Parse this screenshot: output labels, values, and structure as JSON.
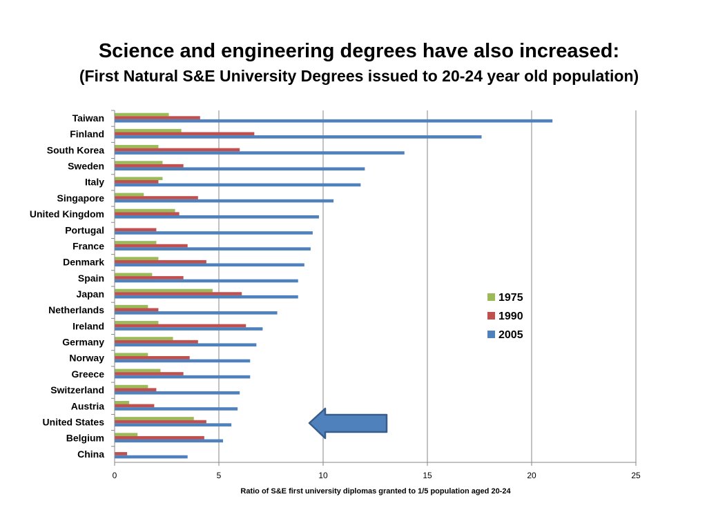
{
  "title": "Science and engineering degrees have also increased:",
  "subtitle": "(First Natural S&E University Degrees issued to 20-24 year old population)",
  "chart_data": {
    "type": "bar",
    "orientation": "horizontal",
    "categories": [
      "Taiwan",
      "Finland",
      "South Korea",
      "Sweden",
      "Italy",
      "Singapore",
      "United Kingdom",
      "Portugal",
      "France",
      "Denmark",
      "Spain",
      "Japan",
      "Netherlands",
      "Ireland",
      "Germany",
      "Norway",
      "Greece",
      "Switzerland",
      "Austria",
      "United States",
      "Belgium",
      "China"
    ],
    "series": [
      {
        "name": "1975",
        "color": "#9BBB59",
        "values": [
          2.6,
          3.2,
          2.1,
          2.3,
          2.3,
          1.4,
          2.9,
          0,
          2.0,
          2.1,
          1.8,
          4.7,
          1.6,
          2.1,
          2.8,
          1.6,
          2.2,
          1.6,
          0.7,
          3.8,
          1.1,
          0
        ]
      },
      {
        "name": "1990",
        "color": "#C0504D",
        "values": [
          4.1,
          6.7,
          6.0,
          3.3,
          2.1,
          4.0,
          3.1,
          2.0,
          3.5,
          4.4,
          3.3,
          6.1,
          2.1,
          6.3,
          4.0,
          3.6,
          3.3,
          2.0,
          1.9,
          4.4,
          4.3,
          0.6
        ]
      },
      {
        "name": "2005",
        "color": "#4F81BD",
        "values": [
          21.0,
          17.6,
          13.9,
          12.0,
          11.8,
          10.5,
          9.8,
          9.5,
          9.4,
          9.1,
          8.8,
          8.8,
          7.8,
          7.1,
          6.8,
          6.5,
          6.5,
          6.0,
          5.9,
          5.6,
          5.2,
          3.5
        ]
      }
    ],
    "xlabel": "Ratio of  S&E first university diplomas granted to 1/5 population aged 20-24",
    "xticks": [
      0,
      5,
      10,
      15,
      20,
      25
    ],
    "xlim": [
      0,
      25
    ],
    "grid": "vertical major gridlines",
    "legend_placement": "right",
    "annotation": "blue left-pointing arrow indicating United States"
  }
}
